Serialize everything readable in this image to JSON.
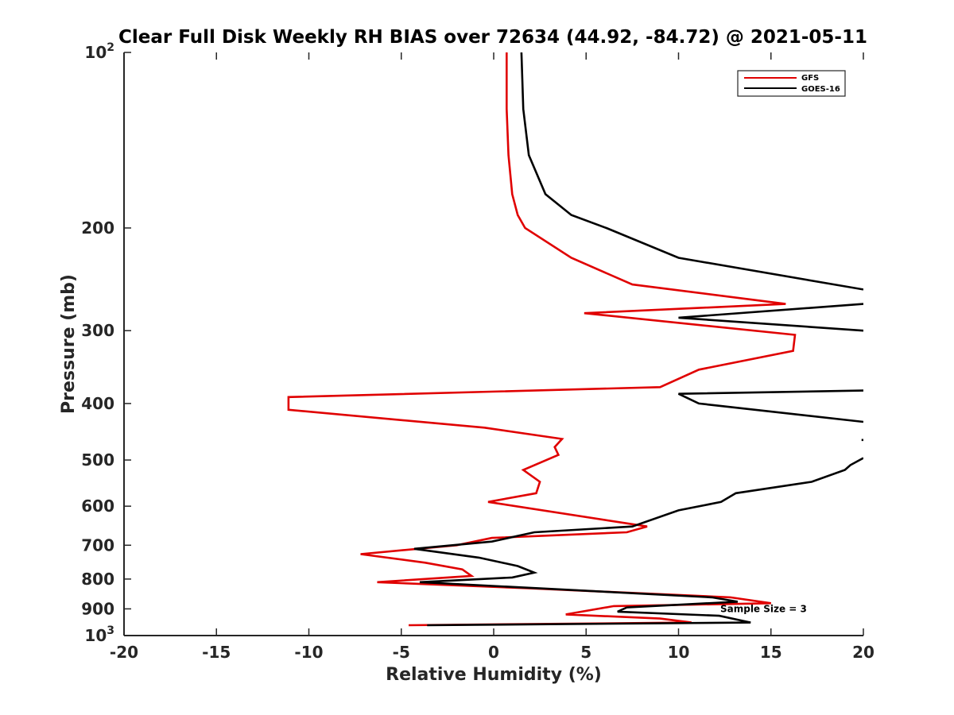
{
  "chart_data": {
    "type": "line",
    "title": "Clear Full Disk Weekly RH BIAS over 72634 (44.92, -84.72) @ 2021-05-11",
    "xlabel": "Relative Humidity (%)",
    "ylabel": "Pressure (mb)",
    "xlim": [
      -20,
      20
    ],
    "ylim": [
      100,
      1000
    ],
    "yscale": "log",
    "y_reversed": true,
    "x_ticks": [
      -20,
      -15,
      -10,
      -5,
      0,
      5,
      10,
      15,
      20
    ],
    "x_tick_labels": [
      "-20",
      "-15",
      "-10",
      "-5",
      "0",
      "5",
      "10",
      "15",
      "20"
    ],
    "y_ticks": [
      100,
      200,
      300,
      400,
      500,
      600,
      700,
      800,
      900,
      1000
    ],
    "y_tick_labels": [
      "10^2",
      "200",
      "300",
      "400",
      "500",
      "600",
      "700",
      "800",
      "900",
      "10^3"
    ],
    "legend_placement": "top-right",
    "annotation": "Sample Size = 3",
    "annotation_x": 14.6,
    "annotation_p": 900,
    "series": [
      {
        "name": "GFS",
        "color": "#e00000",
        "points": [
          [
            0.7,
            100
          ],
          [
            0.7,
            125
          ],
          [
            0.8,
            150
          ],
          [
            1.0,
            175
          ],
          [
            1.3,
            190
          ],
          [
            1.7,
            200
          ],
          [
            4.2,
            225
          ],
          [
            7.5,
            250
          ],
          [
            15.8,
            270
          ],
          [
            4.9,
            280
          ],
          [
            16.3,
            305
          ],
          [
            16.2,
            325
          ],
          [
            11.1,
            350
          ],
          [
            9.0,
            375
          ],
          [
            -11.1,
            390
          ],
          [
            -11.1,
            410
          ],
          [
            -0.5,
            440
          ],
          [
            3.7,
            460
          ],
          [
            3.3,
            475
          ],
          [
            3.5,
            490
          ],
          [
            1.6,
            520
          ],
          [
            2.5,
            545
          ],
          [
            2.3,
            570
          ],
          [
            -0.3,
            590
          ],
          [
            8.3,
            650
          ],
          [
            7.2,
            665
          ],
          [
            -0.1,
            680
          ],
          [
            -2.0,
            700
          ],
          [
            -7.2,
            725
          ],
          [
            -3.7,
            750
          ],
          [
            -1.7,
            770
          ],
          [
            -1.2,
            790
          ],
          [
            -6.3,
            810
          ],
          [
            2.0,
            830
          ],
          [
            12.8,
            860
          ],
          [
            15.0,
            880
          ],
          [
            6.5,
            890
          ],
          [
            3.9,
            920
          ],
          [
            9.0,
            935
          ],
          [
            10.7,
            950
          ],
          [
            -4.6,
            960
          ]
        ]
      },
      {
        "name": "GOES-16",
        "color": "#000000",
        "points": [
          [
            1.5,
            100
          ],
          [
            1.6,
            125
          ],
          [
            1.9,
            150
          ],
          [
            2.8,
            175
          ],
          [
            4.2,
            190
          ],
          [
            6.1,
            200
          ],
          [
            10.0,
            225
          ],
          [
            20.0,
            255
          ],
          [
            null,
            null
          ],
          [
            20.0,
            270
          ],
          [
            10.0,
            285
          ],
          [
            20.0,
            300
          ],
          [
            null,
            null
          ],
          [
            20.0,
            380
          ],
          [
            10.0,
            385
          ],
          [
            11.1,
            400
          ],
          [
            20.0,
            430
          ],
          [
            null,
            null
          ],
          [
            19.9,
            462
          ],
          [
            20.1,
            462
          ],
          [
            null,
            null
          ],
          [
            20.0,
            496
          ],
          [
            19.3,
            510
          ],
          [
            19.0,
            520
          ],
          [
            17.2,
            545
          ],
          [
            13.1,
            570
          ],
          [
            12.3,
            590
          ],
          [
            10.0,
            610
          ],
          [
            7.5,
            650
          ],
          [
            2.2,
            665
          ],
          [
            -0.1,
            690
          ],
          [
            -4.3,
            710
          ],
          [
            -0.8,
            735
          ],
          [
            1.3,
            760
          ],
          [
            2.2,
            780
          ],
          [
            1.0,
            795
          ],
          [
            -4.0,
            810
          ],
          [
            2.5,
            830
          ],
          [
            11.8,
            860
          ],
          [
            13.2,
            875
          ],
          [
            7.2,
            895
          ],
          [
            6.7,
            910
          ],
          [
            12.2,
            925
          ],
          [
            13.9,
            950
          ],
          [
            -3.6,
            960
          ]
        ]
      }
    ]
  }
}
